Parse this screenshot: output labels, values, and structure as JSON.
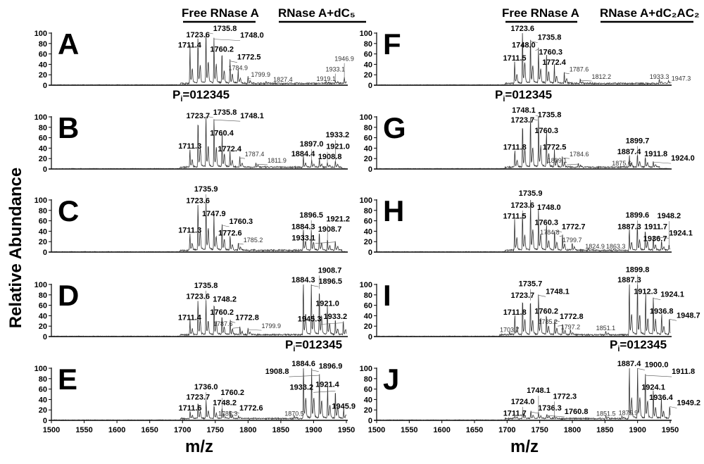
{
  "headers": {
    "left_free": "Free RNase A",
    "left_complex": "RNase A+dC₅",
    "right_free": "Free RNase A",
    "right_complex": "RNase A+dC₂AC₂"
  },
  "pi_label": {
    "symbol": "P",
    "sub": "i",
    "values": "=012345"
  },
  "ylabel": "Relative Abundance",
  "xlabel": "m/z",
  "chart_data": {
    "type": "line",
    "xlabel": "m/z",
    "ylabel": "Relative Abundance",
    "xlim": [
      1500,
      1950
    ],
    "ylim": [
      0,
      100
    ],
    "x_ticks": [
      "1500",
      "1550",
      "1600",
      "1650",
      "1700",
      "1750",
      "1800",
      "1850",
      "1900",
      "1950"
    ],
    "y_ticks": [
      "0",
      "20",
      "40",
      "60",
      "80",
      "100"
    ],
    "panels": [
      {
        "letter": "A",
        "column": "left",
        "peaks": [
          [
            1711.4,
            68
          ],
          [
            1723.6,
            88
          ],
          [
            1735.8,
            100
          ],
          [
            1748.0,
            87
          ],
          [
            1760.2,
            60
          ],
          [
            1772.5,
            45
          ],
          [
            1784.9,
            25,
            "minor"
          ],
          [
            1799.9,
            12,
            "minor"
          ],
          [
            1827.4,
            3,
            "minor"
          ],
          [
            1919.1,
            4,
            "minor"
          ],
          [
            1933.1,
            6,
            "minor"
          ],
          [
            1946.9,
            10,
            "minor"
          ]
        ]
      },
      {
        "letter": "B",
        "column": "left",
        "peaks": [
          [
            1711.3,
            35
          ],
          [
            1723.7,
            93
          ],
          [
            1735.8,
            100
          ],
          [
            1748.1,
            93
          ],
          [
            1760.4,
            60
          ],
          [
            1772.4,
            30
          ],
          [
            1787.4,
            20,
            "minor"
          ],
          [
            1811.9,
            8,
            "minor"
          ],
          [
            1884.4,
            20
          ],
          [
            1897.0,
            15
          ],
          [
            1908.8,
            15
          ],
          [
            1921.0,
            10
          ],
          [
            1933.2,
            12
          ]
        ]
      },
      {
        "letter": "C",
        "column": "left",
        "peaks": [
          [
            1711.3,
            33
          ],
          [
            1723.6,
            90
          ],
          [
            1735.9,
            100
          ],
          [
            1747.9,
            65
          ],
          [
            1760.3,
            50
          ],
          [
            1772.6,
            28
          ],
          [
            1785.2,
            15,
            "minor"
          ],
          [
            1884.3,
            40
          ],
          [
            1896.5,
            38
          ],
          [
            1908.7,
            35
          ],
          [
            1921.2,
            22
          ],
          [
            1933.1,
            18
          ]
        ]
      },
      {
        "letter": "D",
        "column": "left",
        "peaks": [
          [
            1711.4,
            28
          ],
          [
            1723.6,
            68
          ],
          [
            1735.8,
            65
          ],
          [
            1748.2,
            63
          ],
          [
            1760.2,
            38
          ],
          [
            1772.8,
            28
          ],
          [
            1787.6,
            16,
            "minor"
          ],
          [
            1799.9,
            12,
            "minor"
          ],
          [
            1884.3,
            100
          ],
          [
            1896.5,
            97
          ],
          [
            1908.7,
            90
          ],
          [
            1921.0,
            55
          ],
          [
            1933.2,
            30
          ],
          [
            1945.3,
            25
          ]
        ]
      },
      {
        "letter": "E",
        "column": "left",
        "peaks": [
          [
            1711.6,
            15
          ],
          [
            1723.7,
            32
          ],
          [
            1736.0,
            35
          ],
          [
            1748.2,
            25
          ],
          [
            1760.2,
            20
          ],
          [
            1772.6,
            15
          ],
          [
            1785.3,
            5,
            "minor"
          ],
          [
            1870.5,
            5,
            "minor"
          ],
          [
            1884.6,
            100
          ],
          [
            1896.9,
            95
          ],
          [
            1908.8,
            85
          ],
          [
            1921.4,
            60
          ],
          [
            1933.2,
            55
          ],
          [
            1945.9,
            18
          ]
        ]
      },
      {
        "letter": "F",
        "column": "right",
        "peaks": [
          [
            1711.5,
            43
          ],
          [
            1723.6,
            100
          ],
          [
            1735.8,
            83
          ],
          [
            1748.0,
            68
          ],
          [
            1760.3,
            55
          ],
          [
            1772.4,
            35
          ],
          [
            1787.6,
            22,
            "minor"
          ],
          [
            1812.2,
            8,
            "minor"
          ],
          [
            1933.3,
            8,
            "minor"
          ],
          [
            1947.3,
            5,
            "minor"
          ]
        ]
      },
      {
        "letter": "G",
        "column": "right",
        "peaks": [
          [
            1711.8,
            33
          ],
          [
            1723.7,
            85
          ],
          [
            1735.8,
            95
          ],
          [
            1748.1,
            100
          ],
          [
            1760.3,
            65
          ],
          [
            1772.5,
            33
          ],
          [
            1784.6,
            20,
            "minor"
          ],
          [
            1809.1,
            8,
            "minor"
          ],
          [
            1875.6,
            3,
            "minor"
          ],
          [
            1887.4,
            20
          ],
          [
            1899.7,
            25
          ],
          [
            1911.8,
            20
          ],
          [
            1924.0,
            12
          ]
        ]
      },
      {
        "letter": "H",
        "column": "right",
        "peaks": [
          [
            1711.5,
            60
          ],
          [
            1723.6,
            73
          ],
          [
            1735.9,
            100
          ],
          [
            1748.0,
            77
          ],
          [
            1760.3,
            48
          ],
          [
            1772.7,
            40
          ],
          [
            1784.8,
            30,
            "minor"
          ],
          [
            1799.7,
            15,
            "minor"
          ],
          [
            1824.9,
            3,
            "minor"
          ],
          [
            1863.3,
            3,
            "minor"
          ],
          [
            1887.3,
            40
          ],
          [
            1899.6,
            50
          ],
          [
            1911.7,
            40
          ],
          [
            1924.1,
            28
          ],
          [
            1936.7,
            17
          ],
          [
            1948.2,
            12
          ]
        ]
      },
      {
        "letter": "I",
        "column": "right",
        "peaks": [
          [
            1703.7,
            5,
            "minor"
          ],
          [
            1711.8,
            38
          ],
          [
            1723.7,
            70
          ],
          [
            1735.7,
            68
          ],
          [
            1748.1,
            78
          ],
          [
            1760.2,
            40
          ],
          [
            1772.8,
            30
          ],
          [
            1785.2,
            20,
            "minor"
          ],
          [
            1797.2,
            10,
            "minor"
          ],
          [
            1851.1,
            8,
            "minor"
          ],
          [
            1887.3,
            100
          ],
          [
            1899.8,
            95
          ],
          [
            1912.3,
            78
          ],
          [
            1924.1,
            72
          ],
          [
            1936.8,
            40
          ],
          [
            1948.7,
            32
          ]
        ]
      },
      {
        "letter": "J",
        "column": "right",
        "peaks": [
          [
            1711.7,
            5
          ],
          [
            1724.0,
            15
          ],
          [
            1736.3,
            15
          ],
          [
            1748.1,
            12
          ],
          [
            1760.8,
            8
          ],
          [
            1772.3,
            5
          ],
          [
            1851.5,
            5,
            "minor"
          ],
          [
            1875.9,
            6,
            "minor"
          ],
          [
            1887.4,
            100
          ],
          [
            1900.0,
            98
          ],
          [
            1911.8,
            85
          ],
          [
            1924.1,
            55
          ],
          [
            1936.4,
            35
          ],
          [
            1949.2,
            25
          ]
        ]
      }
    ]
  }
}
